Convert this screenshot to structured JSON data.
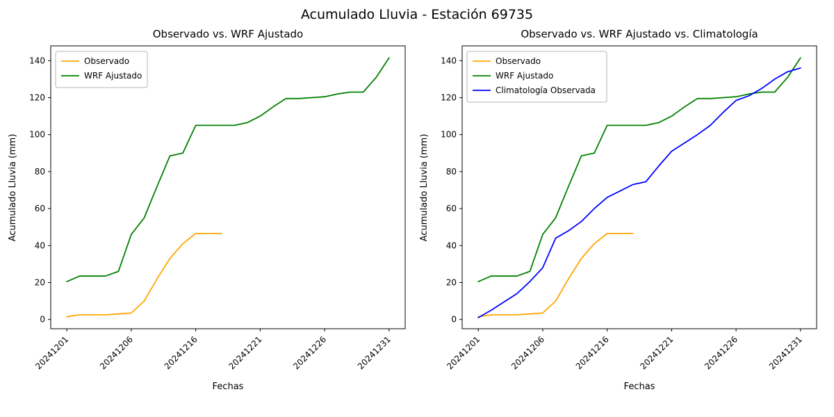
{
  "figure": {
    "suptitle": "Acumulado Lluvia - Estación 69735"
  },
  "chart_data": [
    {
      "type": "line",
      "title": "Observado vs. WRF Ajustado",
      "xlabel": "Fechas",
      "ylabel": "Acumulado Lluvia (mm)",
      "legend_position": "upper left",
      "grid": false,
      "n_points": 26,
      "xlim": [
        -1.25,
        26.25
      ],
      "ylim": [
        -5,
        148
      ],
      "y_ticks": [
        0,
        20,
        40,
        60,
        80,
        100,
        120,
        140
      ],
      "x_tick_indices": [
        0,
        5,
        10,
        15,
        20,
        25
      ],
      "x_tick_labels": [
        "20241201",
        "20241206",
        "20241216",
        "20241221",
        "20241226",
        "20241231"
      ],
      "series": [
        {
          "name": "Observado",
          "color": "#FFA500",
          "values": [
            1.5,
            2.5,
            2.5,
            2.5,
            3,
            3.5,
            10,
            22,
            33,
            41,
            46.5,
            46.5,
            46.5
          ]
        },
        {
          "name": "WRF Ajustado",
          "color": "#008000",
          "values": [
            20.5,
            23.5,
            23.5,
            23.5,
            26,
            46,
            55,
            72,
            88.5,
            90,
            105,
            105,
            105,
            105,
            106.5,
            110,
            115,
            119.5,
            119.5,
            120,
            120.5,
            122,
            123,
            123,
            131,
            141.5
          ]
        }
      ]
    },
    {
      "type": "line",
      "title": "Observado vs. WRF Ajustado vs. Climatología",
      "xlabel": "Fechas",
      "ylabel": "Acumulado Lluvia (mm)",
      "legend_position": "upper left",
      "grid": false,
      "n_points": 26,
      "xlim": [
        -1.25,
        26.25
      ],
      "ylim": [
        -5,
        148
      ],
      "y_ticks": [
        0,
        20,
        40,
        60,
        80,
        100,
        120,
        140
      ],
      "x_tick_indices": [
        0,
        5,
        10,
        15,
        20,
        25
      ],
      "x_tick_labels": [
        "20241201",
        "20241206",
        "20241216",
        "20241221",
        "20241226",
        "20241231"
      ],
      "series": [
        {
          "name": "Observado",
          "color": "#FFA500",
          "values": [
            1.5,
            2.5,
            2.5,
            2.5,
            3,
            3.5,
            10,
            22,
            33,
            41,
            46.5,
            46.5,
            46.5
          ]
        },
        {
          "name": "WRF Ajustado",
          "color": "#008000",
          "values": [
            20.5,
            23.5,
            23.5,
            23.5,
            26,
            46,
            55,
            72,
            88.5,
            90,
            105,
            105,
            105,
            105,
            106.5,
            110,
            115,
            119.5,
            119.5,
            120,
            120.5,
            122,
            123,
            123,
            131,
            141.5
          ]
        },
        {
          "name": "Climatología Observada",
          "color": "#0000FF",
          "values": [
            1,
            5,
            9.5,
            14,
            20.5,
            28,
            44,
            48,
            53,
            60,
            66,
            69.5,
            73,
            74.5,
            83,
            91,
            95.5,
            100,
            105,
            112,
            118.5,
            121,
            125,
            130,
            134,
            136
          ]
        }
      ]
    }
  ]
}
